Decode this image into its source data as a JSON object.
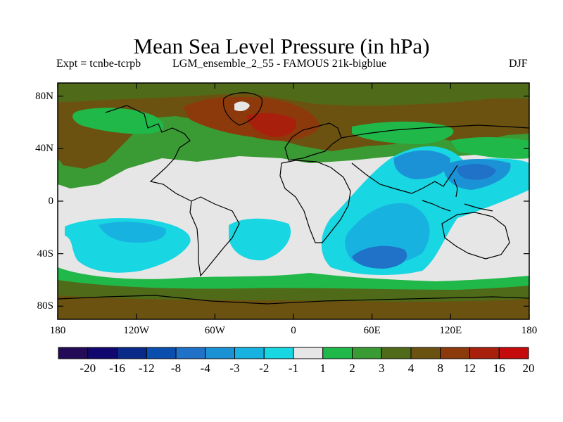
{
  "title": "Mean Sea Level Pressure (in hPa)",
  "subtitle_left": "Expt = tcnbe-tcrpb",
  "subtitle_center": "LGM_ensemble_2_55 - FAMOUS 21k-bigblue",
  "season": "DJF",
  "x_ticks": [
    "180",
    "120W",
    "60W",
    "0",
    "60E",
    "120E",
    "180"
  ],
  "y_ticks": [
    "80N",
    "40N",
    "0",
    "40S",
    "80S"
  ],
  "colorbar": {
    "labels": [
      "-20",
      "-16",
      "-12",
      "-8",
      "-4",
      "-3",
      "-2",
      "-1",
      "1",
      "2",
      "3",
      "4",
      "8",
      "12",
      "16",
      "20"
    ],
    "colors": [
      "#230b57",
      "#11086f",
      "#0a2a8a",
      "#0b4fae",
      "#1f72c8",
      "#1c92d6",
      "#17b2e0",
      "#18d6e2",
      "#e6e6e6",
      "#21b84a",
      "#3a9a34",
      "#4f6b1a",
      "#6b5210",
      "#8c3a0c",
      "#a8200c",
      "#c40a0a"
    ]
  }
}
